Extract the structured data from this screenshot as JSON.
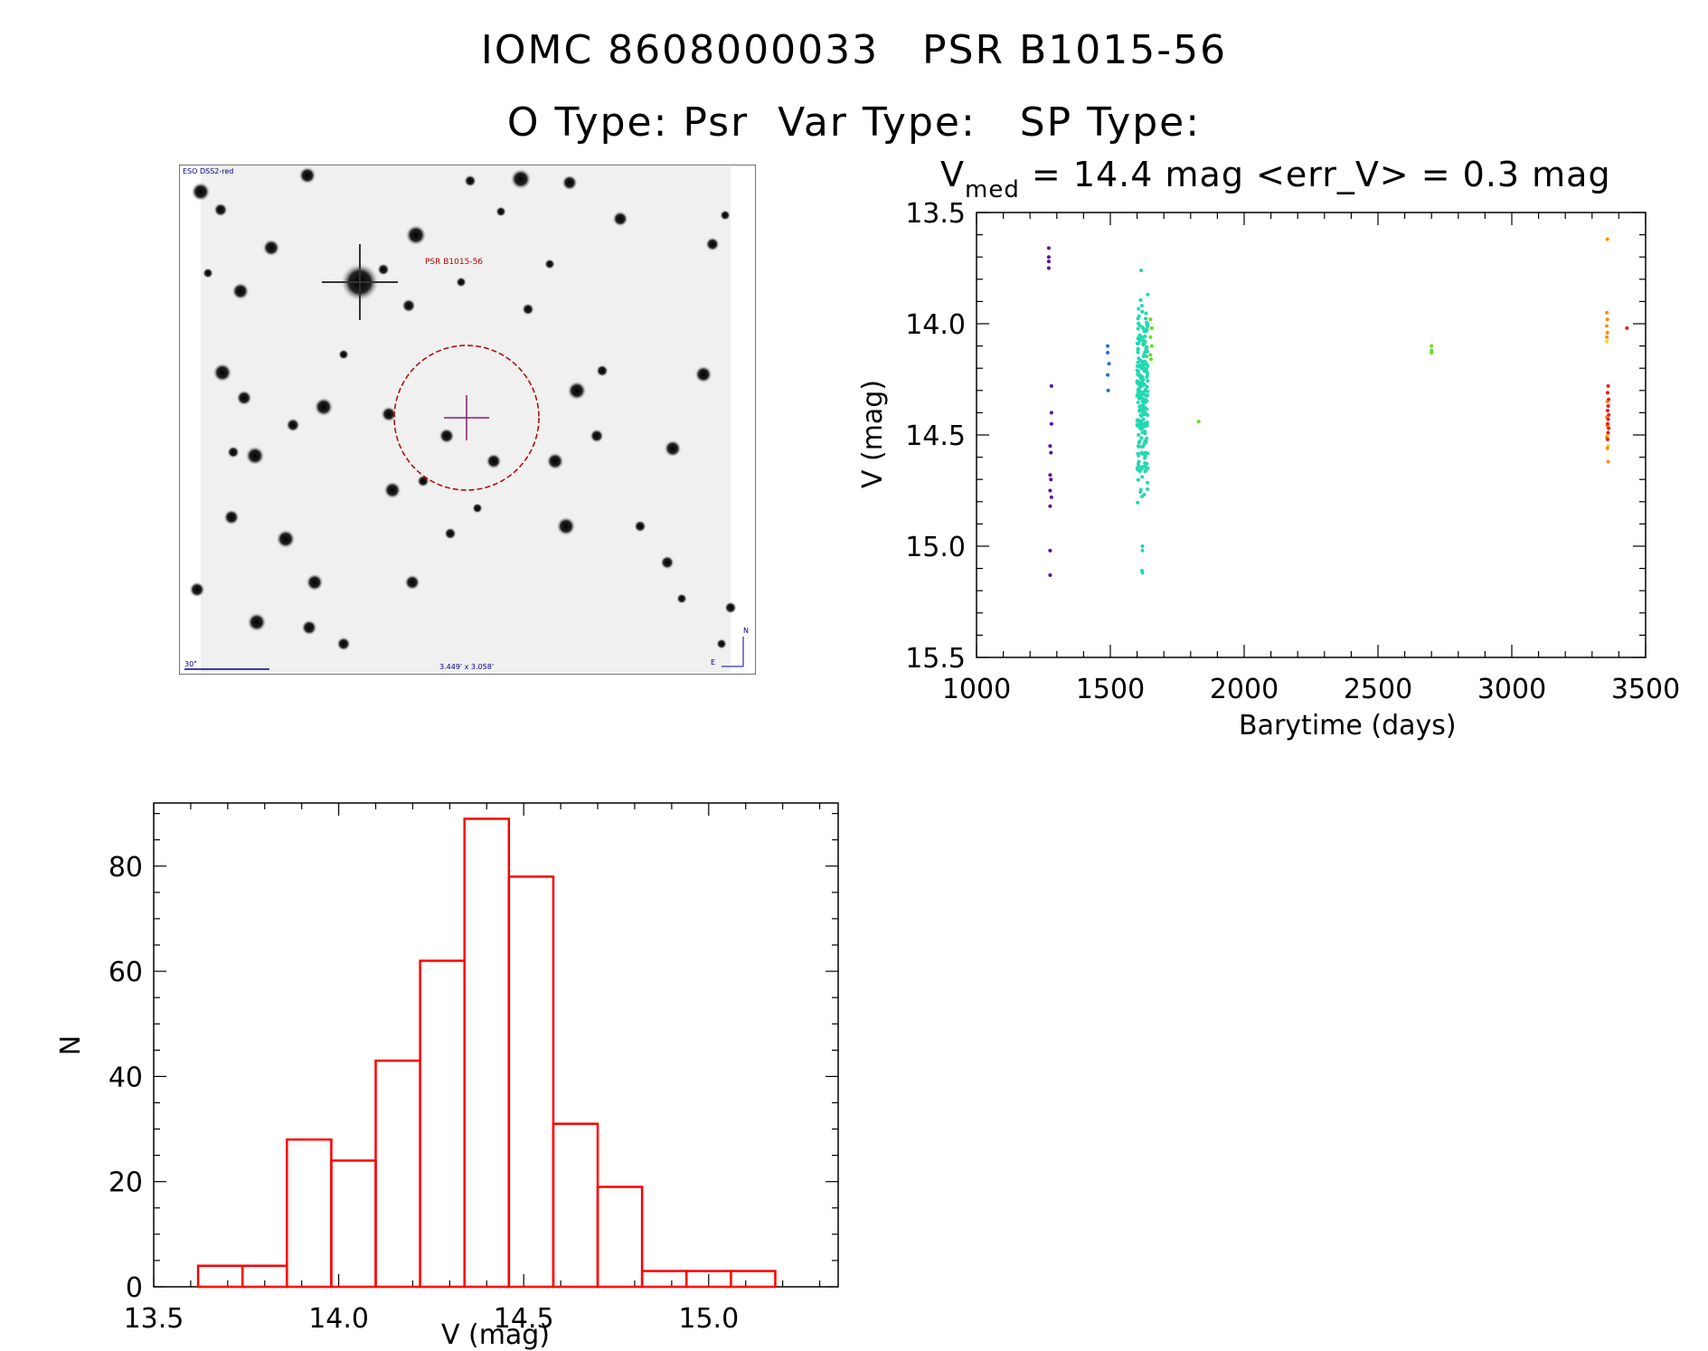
{
  "header": {
    "line1": "IOMC 8608000033   PSR B1015-56",
    "line2": "O Type: Psr  Var Type:   SP Type:"
  },
  "thumbnail": {
    "survey_label": "ESO DSS2-red",
    "object_label": "PSR B1015-56",
    "scale_label": "30\"",
    "fov_label": "3.449' x 3.058'",
    "north_label": "N",
    "east_label": "E"
  },
  "chart_data": [
    {
      "type": "scatter",
      "title_main": "V",
      "title_sub": "med",
      "title_rest": " = 14.4 mag <err_V> = 0.3 mag",
      "xlabel": "Barytime (days)",
      "ylabel": "V (mag)",
      "xlim": [
        1000,
        3500
      ],
      "ylim": [
        15.5,
        13.5
      ],
      "xticks": [
        "1000",
        "1500",
        "2000",
        "2500",
        "3000",
        "3500"
      ],
      "yticks": [
        "13.5",
        "14.0",
        "14.5",
        "15.0",
        "15.5"
      ],
      "series": [
        {
          "color": "#5a0fa0",
          "points": [
            [
              1270,
              13.66
            ],
            [
              1270,
              13.7
            ],
            [
              1270,
              13.72
            ],
            [
              1270,
              13.75
            ],
            [
              1280,
              14.28
            ],
            [
              1280,
              14.4
            ],
            [
              1280,
              14.45
            ],
            [
              1275,
              14.55
            ],
            [
              1278,
              14.58
            ],
            [
              1275,
              14.68
            ],
            [
              1278,
              14.7
            ],
            [
              1275,
              14.75
            ],
            [
              1280,
              14.78
            ],
            [
              1275,
              14.82
            ],
            [
              1275,
              15.02
            ],
            [
              1275,
              15.13
            ]
          ]
        },
        {
          "color": "#1f6fd8",
          "points": [
            [
              1490,
              14.1
            ],
            [
              1490,
              14.13
            ],
            [
              1495,
              14.18
            ],
            [
              1490,
              14.23
            ],
            [
              1492,
              14.3
            ]
          ]
        },
        {
          "color": "#22d8b0",
          "points": []
        },
        {
          "color": "#66dd22",
          "points": [
            [
              1650,
              13.98
            ],
            [
              1655,
              14.02
            ],
            [
              1650,
              14.06
            ],
            [
              1655,
              14.1
            ],
            [
              1650,
              14.14
            ],
            [
              1652,
              14.16
            ],
            [
              1830,
              14.44
            ],
            [
              2700,
              14.1
            ],
            [
              2700,
              14.12
            ],
            [
              2700,
              14.13
            ]
          ]
        },
        {
          "color": "#ffd21e",
          "points": [
            [
              3355,
              14.08
            ],
            [
              3357,
              14.5
            ],
            [
              3360,
              14.55
            ]
          ]
        },
        {
          "color": "#ff8c00",
          "points": [
            [
              3357,
              13.62
            ],
            [
              3355,
              13.95
            ],
            [
              3357,
              13.98
            ],
            [
              3355,
              14.01
            ],
            [
              3357,
              14.04
            ],
            [
              3355,
              14.06
            ],
            [
              3357,
              14.35
            ],
            [
              3355,
              14.42
            ],
            [
              3357,
              14.46
            ],
            [
              3355,
              14.51
            ],
            [
              3357,
              14.56
            ],
            [
              3360,
              14.62
            ]
          ]
        },
        {
          "color": "#e81e1e",
          "points": [
            [
              3430,
              14.02
            ],
            [
              3360,
              14.28
            ],
            [
              3358,
              14.31
            ],
            [
              3362,
              14.34
            ],
            [
              3360,
              14.37
            ],
            [
              3358,
              14.39
            ],
            [
              3362,
              14.41
            ],
            [
              3360,
              14.43
            ],
            [
              3358,
              14.45
            ],
            [
              3362,
              14.47
            ],
            [
              3360,
              14.49
            ],
            [
              3358,
              14.52
            ]
          ]
        }
      ],
      "dense_cluster": {
        "color": "#22d8b0",
        "x_range": [
          1600,
          1640
        ],
        "y_range": [
          13.85,
          14.85
        ],
        "count": 240,
        "extra_points": [
          [
            1615,
            13.76
          ],
          [
            1620,
            15.0
          ],
          [
            1620,
            15.02
          ],
          [
            1618,
            15.11
          ],
          [
            1620,
            15.12
          ]
        ]
      }
    },
    {
      "type": "bar",
      "style": "step-histogram",
      "color": "#ff0000",
      "xlabel": "V (mag)",
      "ylabel": "N",
      "xlim": [
        13.5,
        15.35
      ],
      "ylim": [
        0,
        92
      ],
      "xticks": [
        "13.5",
        "14.0",
        "14.5",
        "15.0"
      ],
      "yticks": [
        "0",
        "20",
        "40",
        "60",
        "80"
      ],
      "bin_edges": [
        13.62,
        13.74,
        13.86,
        13.98,
        14.1,
        14.22,
        14.34,
        14.46,
        14.58,
        14.7,
        14.82,
        14.94,
        15.06,
        15.18
      ],
      "values": [
        4,
        4,
        28,
        24,
        43,
        62,
        89,
        78,
        31,
        19,
        3,
        3,
        3
      ]
    }
  ]
}
